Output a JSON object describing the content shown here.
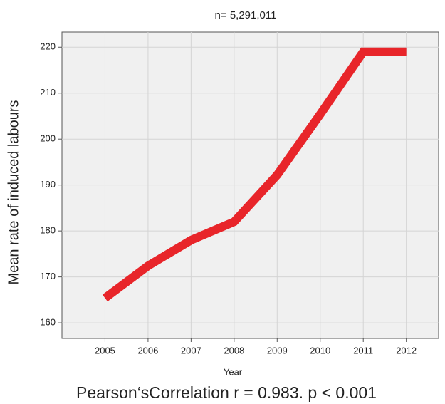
{
  "chart_data": {
    "type": "line",
    "title": "n= 5,291,011",
    "x_label": "Year",
    "y_label": "Mean rate of induced labours",
    "annotation": "Pearson‘sCorrelation r = 0.983. p < 0.001",
    "x": [
      2005,
      2006,
      2007,
      2008,
      2009,
      2010,
      2011,
      2012
    ],
    "series": [
      {
        "name": "Mean rate of induced labours",
        "color": "#e8252a",
        "values": [
          165.4,
          172.4,
          178,
          182,
          192.2,
          205.4,
          219,
          219
        ]
      }
    ],
    "xlim": [
      2004,
      2012.75
    ],
    "xticks": [
      2005,
      2006,
      2007,
      2008,
      2009,
      2010,
      2011,
      2012
    ],
    "ylim": [
      156.6,
      223.3
    ],
    "yticks": [
      160,
      170,
      180,
      190,
      200,
      210,
      220
    ],
    "grid": true
  }
}
